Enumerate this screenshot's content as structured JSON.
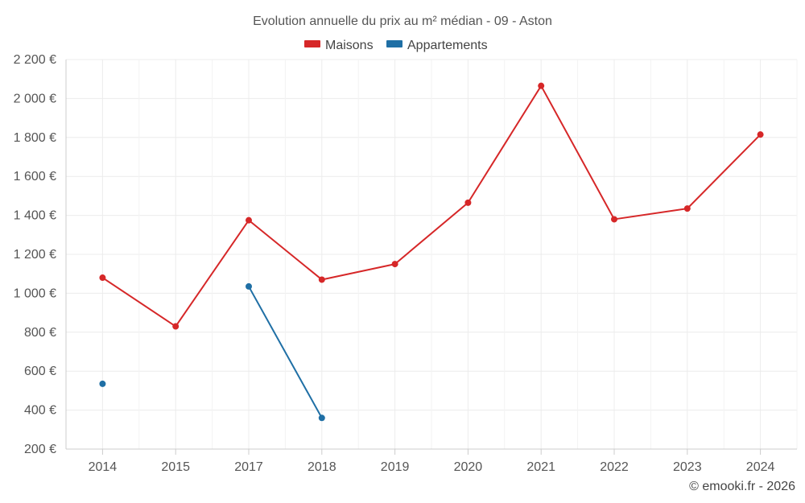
{
  "chart_data": {
    "type": "line",
    "title": "Evolution annuelle du prix au m² médian - 09 - Aston",
    "categories": [
      "2014",
      "2015",
      "2017",
      "2018",
      "2019",
      "2020",
      "2021",
      "2022",
      "2023",
      "2024"
    ],
    "series": [
      {
        "name": "Maisons",
        "color": "#d62728",
        "values": [
          1080,
          830,
          1375,
          1070,
          1150,
          1465,
          2065,
          1380,
          1435,
          1815
        ]
      },
      {
        "name": "Appartements",
        "color": "#1f6fa5",
        "values": [
          535,
          null,
          1035,
          360,
          null,
          null,
          null,
          null,
          null,
          null
        ]
      }
    ],
    "yticks": [
      "2 200 €",
      "2 000 €",
      "1 800 €",
      "1 600 €",
      "1 400 €",
      "1 200 €",
      "1 000 €",
      "800 €",
      "600 €",
      "400 €",
      "200 €"
    ],
    "ylim": [
      200,
      2200
    ],
    "xlabel": "",
    "ylabel": "",
    "grid": true,
    "legend_position": "top-center",
    "credit": "© emooki.fr - 2026"
  }
}
